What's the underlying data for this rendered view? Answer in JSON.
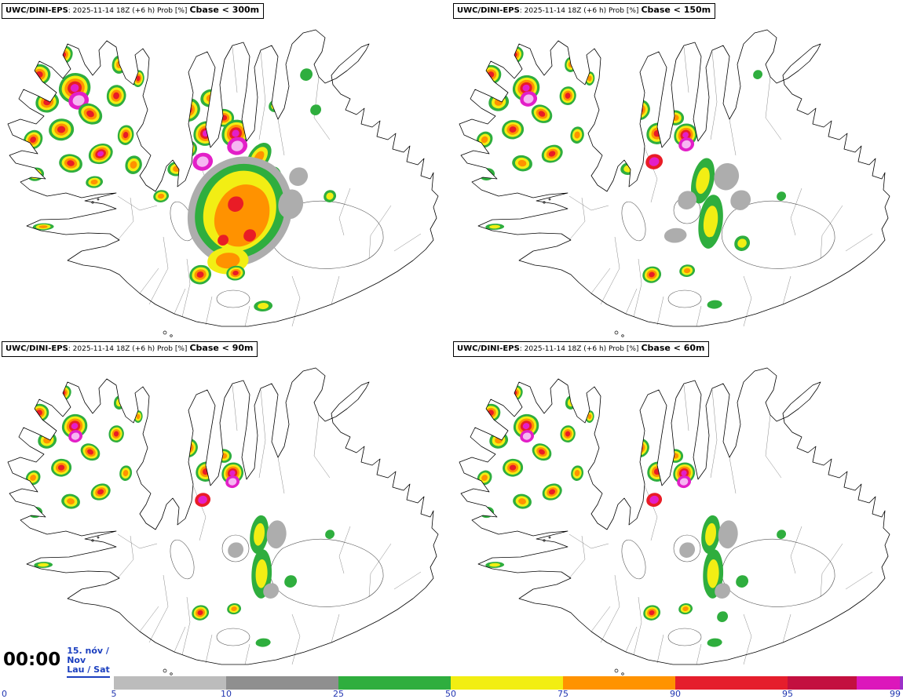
{
  "panels": [
    {
      "id": "300m",
      "model": "UWC/DINI-EPS",
      "meta": ": 2025-11-14 18Z (+6 h) Prob [%]",
      "threshold": "Cbase < 300m"
    },
    {
      "id": "150m",
      "model": "UWC/DINI-EPS",
      "meta": ": 2025-11-14 18Z (+6 h) Prob [%]",
      "threshold": "Cbase < 150m"
    },
    {
      "id": "90m",
      "model": "UWC/DINI-EPS",
      "meta": ": 2025-11-14 18Z (+6 h) Prob [%]",
      "threshold": "Cbase < 90m"
    },
    {
      "id": "60m",
      "model": "UWC/DINI-EPS",
      "meta": ": 2025-11-14 18Z (+6 h) Prob [%]",
      "threshold": "Cbase < 60m"
    }
  ],
  "time_display": {
    "time": "00:00",
    "date_line1": "15. nóv /",
    "date_line2": "Nov",
    "day_line": "Lau / Sat"
  },
  "colorbar": {
    "tick_labels": [
      "0",
      "5",
      "10",
      "25",
      "50",
      "75",
      "90",
      "95",
      "99"
    ],
    "segments": [
      {
        "range": "5-10",
        "color": "#bcbcbc"
      },
      {
        "range": "10-25",
        "color": "#8f8f8f"
      },
      {
        "range": "25-50",
        "color": "#2fae3e"
      },
      {
        "range": "50-75",
        "color": "#f2ee12"
      },
      {
        "range": "75-90",
        "color": "#ff9300"
      },
      {
        "range": "90-95",
        "color": "#e51e2c"
      },
      {
        "range": "95-97",
        "color": "#c3103f"
      },
      {
        "range": "97-99",
        "color": "#dc17bb"
      },
      {
        "range": ">99",
        "color": "#9b30c8"
      }
    ],
    "label_color": "#2236b0"
  },
  "map": {
    "region": "Iceland",
    "palette": [
      "#adadad",
      "#2fae3e",
      "#f2ee14",
      "#ff9200",
      "#e91c26",
      "#e31fc8",
      "#f6b6f2"
    ]
  }
}
